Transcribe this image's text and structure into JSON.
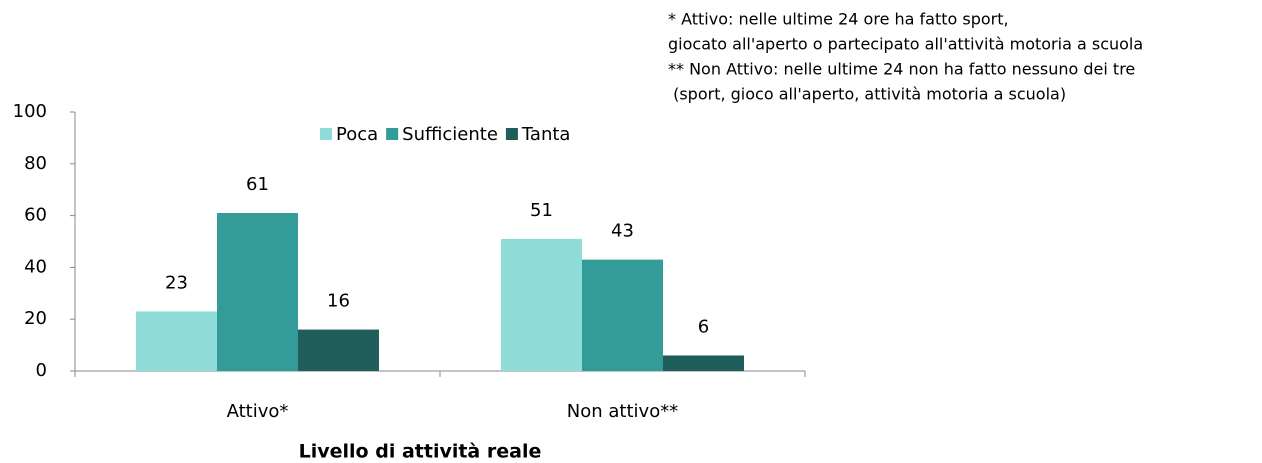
{
  "chart_data": {
    "type": "bar",
    "categories": [
      "Attivo*",
      "Non attivo**"
    ],
    "series": [
      {
        "name": "Poca",
        "color": "#8fdcd9",
        "values": [
          23,
          51
        ]
      },
      {
        "name": "Sufficiente",
        "color": "#339b98",
        "values": [
          61,
          43
        ]
      },
      {
        "name": "Tanta",
        "color": "#1f5e5b",
        "values": [
          16,
          6
        ]
      }
    ],
    "xlabel": "Livello di attività reale",
    "ylim": [
      0,
      100
    ],
    "yticks": [
      0,
      20,
      40,
      60,
      80,
      100
    ],
    "legend": "top",
    "annotations": [
      "* Attivo: nelle ultime 24 ore ha fatto sport,",
      "giocato all'aperto o partecipato all'attività motoria a scuola",
      "** Non Attivo: nelle ultime 24 non ha fatto nessuno dei tre",
      " (sport, gioco all'aperto, attività motoria a scuola)"
    ]
  }
}
